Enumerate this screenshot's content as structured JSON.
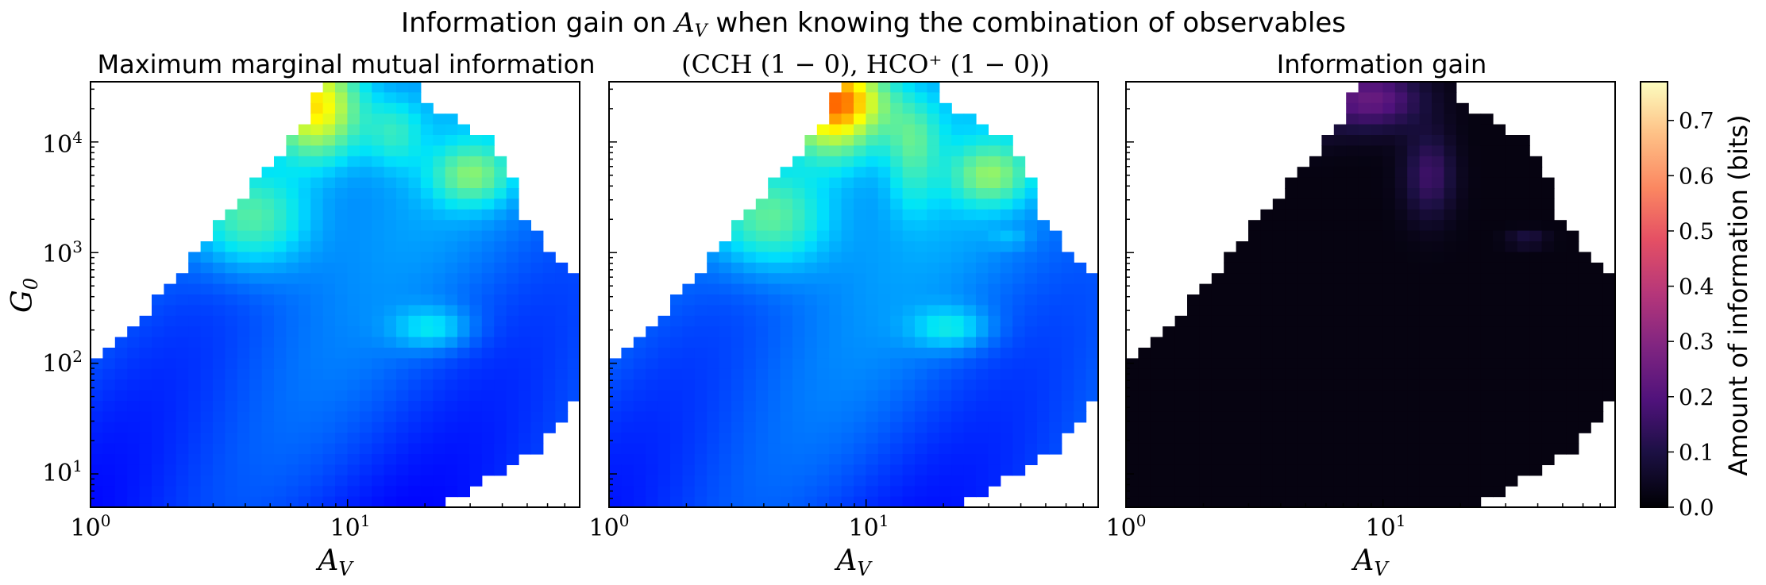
{
  "chart_data": [
    {
      "type": "heatmap",
      "suptitle": "Information gain on A_V when knowing the combination of observables",
      "title": "Maximum marginal mutual information",
      "xlabel": "A_V",
      "ylabel": "G_0",
      "xscale": "log",
      "yscale": "log",
      "xlim": [
        1,
        80
      ],
      "ylim": [
        5,
        35000
      ],
      "x_ticks": [
        1,
        10
      ],
      "y_ticks": [
        10,
        100,
        1000,
        10000
      ],
      "colormap": "jet",
      "value_range": [
        0,
        0.77
      ]
    },
    {
      "type": "heatmap",
      "title": "(CCH (1 − 0), HCO⁺ (1 − 0))",
      "xlabel": "A_V",
      "xscale": "log",
      "yscale": "log",
      "xlim": [
        1,
        80
      ],
      "ylim": [
        5,
        35000
      ],
      "x_ticks": [
        1,
        10
      ],
      "colormap": "jet",
      "value_range": [
        0,
        0.77
      ]
    },
    {
      "type": "heatmap",
      "title": "Information gain",
      "xlabel": "A_V",
      "xscale": "log",
      "yscale": "log",
      "xlim": [
        1,
        80
      ],
      "ylim": [
        5,
        35000
      ],
      "x_ticks": [
        1,
        10
      ],
      "colormap": "magma",
      "value_range": [
        0,
        0.77
      ]
    }
  ],
  "colorbar": {
    "label": "Amount of information (bits)",
    "ticks": [
      "0.0",
      "0.1",
      "0.2",
      "0.3",
      "0.4",
      "0.5",
      "0.6",
      "0.7"
    ],
    "colormap": "magma"
  },
  "labels": {
    "suptitle_text": "Information gain on",
    "suptitle_tail": "when knowing the combination of observables",
    "av_main": "A",
    "av_sub": "V",
    "g_main": "G",
    "g_sub": "0",
    "x_tick_1": "10",
    "x_tick_1_exp": "0",
    "x_tick_10": "10",
    "x_tick_10_exp": "1",
    "y_tick_base": "10",
    "y_tick_exps": [
      "1",
      "2",
      "3",
      "4"
    ],
    "panel2_title": "(CCH (1 − 0), HCO⁺ (1 − 0))"
  }
}
